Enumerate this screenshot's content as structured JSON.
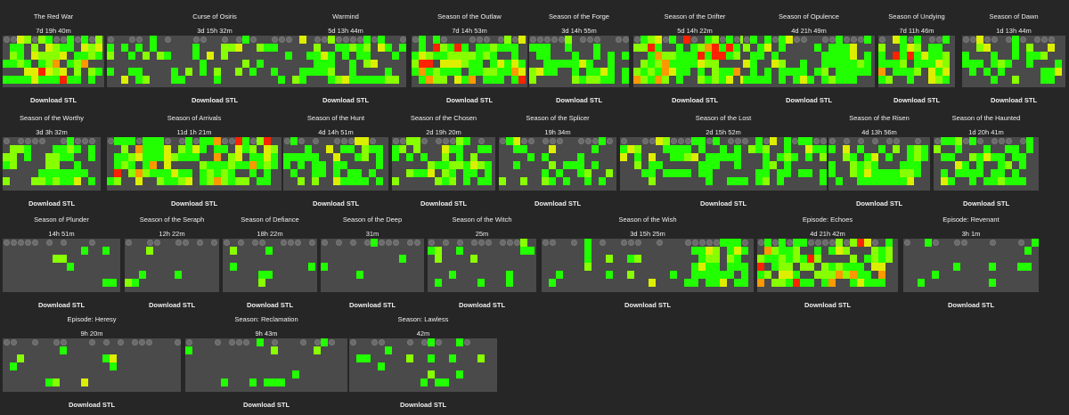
{
  "download_label": "Download STL",
  "colors": {
    "background": "#262626",
    "grid": "#4a4a4a",
    "green": "#22ff00",
    "lime": "#88ff00",
    "yellow": "#ddee00",
    "orange": "#ff9900",
    "red": "#ff2200"
  },
  "seasons": [
    {
      "title": "The Red War",
      "time": "7d 19h 40m"
    },
    {
      "title": "Curse of Osiris",
      "time": "3d 15h 32m"
    },
    {
      "title": "Warmind",
      "time": "5d 13h 44m"
    },
    {
      "title": "Season of the Outlaw",
      "time": "7d 14h 53m"
    },
    {
      "title": "Season of the Forge",
      "time": "3d 14h 55m"
    },
    {
      "title": "Season of the Drifter",
      "time": "5d 14h 22m"
    },
    {
      "title": "Season of Opulence",
      "time": "4d 21h 49m"
    },
    {
      "title": "Season of Undying",
      "time": "7d 11h 46m"
    },
    {
      "title": "Season of Dawn",
      "time": "1d 13h 44m"
    },
    {
      "title": "Season of the Worthy",
      "time": "3d 3h 32m"
    },
    {
      "title": "Season of Arrivals",
      "time": "11d 1h 21m"
    },
    {
      "title": "Season of the Hunt",
      "time": "4d 14h 51m"
    },
    {
      "title": "Season of the Chosen",
      "time": "2d 19h 20m"
    },
    {
      "title": "Season of the Splicer",
      "time": "19h 34m"
    },
    {
      "title": "Season of the Lost",
      "time": "2d 15h 52m"
    },
    {
      "title": "Season of the Risen",
      "time": "4d 13h 56m"
    },
    {
      "title": "Season of the Haunted",
      "time": "1d 20h 41m"
    },
    {
      "title": "Season of Plunder",
      "time": "14h 51m"
    },
    {
      "title": "Season of the Seraph",
      "time": "12h 22m"
    },
    {
      "title": "Season of Defiance",
      "time": "18h 22m"
    },
    {
      "title": "Season of the Deep",
      "time": "31m"
    },
    {
      "title": "Season of the Witch",
      "time": "25m"
    },
    {
      "title": "Season of the Wish",
      "time": "3d 15h 25m"
    },
    {
      "title": "Episode: Echoes",
      "time": "4d 21h 42m"
    },
    {
      "title": "Episode: Revenant",
      "time": "3h 1m"
    },
    {
      "title": "Episode: Heresy",
      "time": "9h 20m"
    },
    {
      "title": "Season: Reclamation",
      "time": "9h 43m"
    },
    {
      "title": "Season: Lawless",
      "time": "42m"
    }
  ]
}
